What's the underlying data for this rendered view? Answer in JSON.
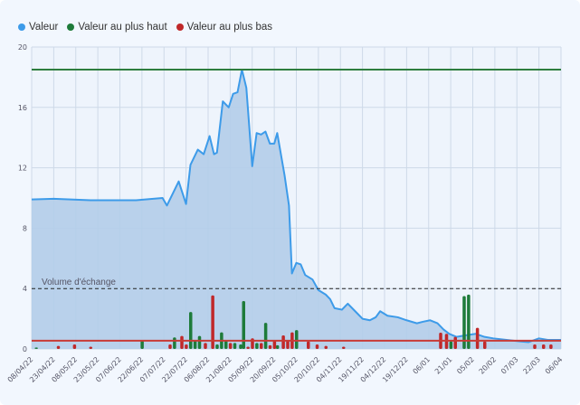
{
  "chart_data": {
    "type": "area",
    "title": "",
    "legend_position": "top-left",
    "legend": [
      {
        "name": "Valeur",
        "color": "#3d9be9"
      },
      {
        "name": "Valeur au plus haut",
        "color": "#1e7b3a"
      },
      {
        "name": "Valeur au plus bas",
        "color": "#c0282a"
      }
    ],
    "ylim": [
      0,
      20
    ],
    "yticks": [
      0,
      4,
      8,
      12,
      16,
      20
    ],
    "xlim_days": [
      0,
      360
    ],
    "xticks": [
      "08/04/22",
      "23/04/22",
      "08/05/22",
      "23/05/22",
      "07/06/22",
      "22/06/22",
      "07/07/22",
      "22/07/22",
      "06/08/22",
      "21/08/22",
      "05/09/22",
      "20/09/22",
      "05/10/22",
      "20/10/22",
      "04/11/22",
      "19/11/22",
      "04/12/22",
      "19/12/22",
      "06/01",
      "21/01",
      "05/02",
      "20/02",
      "07/03",
      "22/03",
      "06/04"
    ],
    "xtick_step_days": 15,
    "grid": true,
    "high_line": 18.5,
    "low_line": 0.55,
    "volume_line": {
      "value": 4,
      "label": "Volume d'échange"
    },
    "series": [
      {
        "name": "Valeur",
        "points": [
          [
            0,
            9.9
          ],
          [
            15,
            9.95
          ],
          [
            40,
            9.85
          ],
          [
            71,
            9.85
          ],
          [
            89,
            10.0
          ],
          [
            92,
            9.5
          ],
          [
            100,
            11.1
          ],
          [
            105,
            9.6
          ],
          [
            108,
            12.2
          ],
          [
            113,
            13.2
          ],
          [
            117,
            12.9
          ],
          [
            121,
            14.1
          ],
          [
            124,
            12.9
          ],
          [
            126,
            13.0
          ],
          [
            130,
            16.4
          ],
          [
            134,
            16.0
          ],
          [
            137,
            16.9
          ],
          [
            140,
            17.0
          ],
          [
            143,
            18.5
          ],
          [
            146,
            17.3
          ],
          [
            150,
            12.1
          ],
          [
            153,
            14.3
          ],
          [
            156,
            14.2
          ],
          [
            159,
            14.4
          ],
          [
            162,
            13.6
          ],
          [
            165,
            13.6
          ],
          [
            167,
            14.3
          ],
          [
            172,
            11.5
          ],
          [
            175,
            9.5
          ],
          [
            177,
            5.0
          ],
          [
            180,
            5.7
          ],
          [
            183,
            5.6
          ],
          [
            186,
            4.9
          ],
          [
            191,
            4.6
          ],
          [
            195,
            3.9
          ],
          [
            200,
            3.6
          ],
          [
            203,
            3.3
          ],
          [
            206,
            2.7
          ],
          [
            211,
            2.6
          ],
          [
            215,
            3.0
          ],
          [
            220,
            2.5
          ],
          [
            225,
            2.0
          ],
          [
            230,
            1.9
          ],
          [
            234,
            2.1
          ],
          [
            237,
            2.5
          ],
          [
            242,
            2.2
          ],
          [
            249,
            2.1
          ],
          [
            255,
            1.9
          ],
          [
            262,
            1.7
          ],
          [
            266,
            1.8
          ],
          [
            271,
            1.9
          ],
          [
            276,
            1.7
          ],
          [
            280,
            1.3
          ],
          [
            284,
            1.0
          ],
          [
            289,
            0.8
          ],
          [
            295,
            0.9
          ],
          [
            302,
            1.0
          ],
          [
            308,
            0.8
          ],
          [
            314,
            0.7
          ],
          [
            323,
            0.6
          ],
          [
            332,
            0.5
          ],
          [
            338,
            0.45
          ],
          [
            345,
            0.7
          ],
          [
            351,
            0.6
          ],
          [
            360,
            0.6
          ]
        ]
      },
      {
        "name": "Valeur au plus haut (volume)",
        "bars": [
          [
            3,
            0.1
          ],
          [
            75,
            0.55
          ],
          [
            97,
            0.76
          ],
          [
            108,
            2.45
          ],
          [
            111,
            0.6
          ],
          [
            114,
            0.86
          ],
          [
            126,
            0.3
          ],
          [
            129,
            1.1
          ],
          [
            132,
            0.6
          ],
          [
            138,
            0.4
          ],
          [
            142,
            0.3
          ],
          [
            144,
            3.17
          ],
          [
            153,
            0.4
          ],
          [
            159,
            1.73
          ],
          [
            167,
            0.25
          ],
          [
            180,
            1.25
          ],
          [
            285,
            0.5
          ],
          [
            294,
            3.5
          ],
          [
            297,
            3.6
          ]
        ]
      },
      {
        "name": "Valeur au plus bas (volume)",
        "bars": [
          [
            18,
            0.2
          ],
          [
            29,
            0.3
          ],
          [
            40,
            0.15
          ],
          [
            94,
            0.3
          ],
          [
            102,
            0.86
          ],
          [
            105,
            0.3
          ],
          [
            118,
            0.4
          ],
          [
            123,
            3.55
          ],
          [
            135,
            0.4
          ],
          [
            147,
            0.15
          ],
          [
            150,
            0.7
          ],
          [
            156,
            0.4
          ],
          [
            162,
            0.25
          ],
          [
            165,
            0.6
          ],
          [
            171,
            0.9
          ],
          [
            174,
            0.6
          ],
          [
            177,
            1.1
          ],
          [
            188,
            0.5
          ],
          [
            194,
            0.3
          ],
          [
            200,
            0.2
          ],
          [
            212,
            0.15
          ],
          [
            278,
            1.08
          ],
          [
            282,
            1.0
          ],
          [
            288,
            0.8
          ],
          [
            303,
            1.4
          ],
          [
            308,
            0.5
          ],
          [
            342,
            0.3
          ],
          [
            348,
            0.3
          ],
          [
            353,
            0.3
          ]
        ]
      }
    ]
  }
}
